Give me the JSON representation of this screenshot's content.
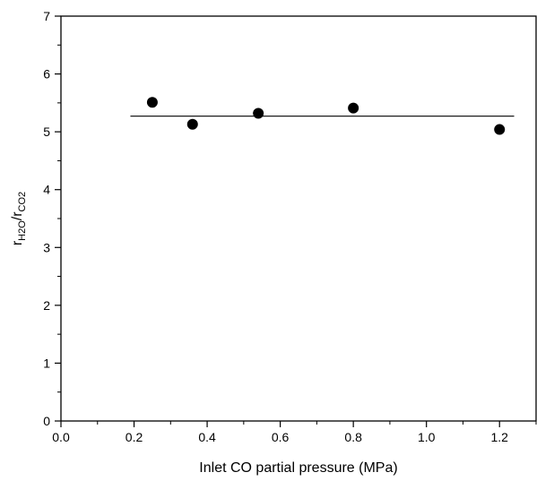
{
  "chart_data": {
    "type": "scatter",
    "title": "",
    "xlabel": "Inlet CO partial pressure (MPa)",
    "ylabel": {
      "r1": "r",
      "sub1": "H2O",
      "slash": "/r",
      "sub2": "CO2"
    },
    "xlim": [
      0.0,
      1.3
    ],
    "ylim": [
      0,
      7
    ],
    "x_ticks": [
      {
        "value": 0.0,
        "label": "0.0"
      },
      {
        "value": 0.2,
        "label": "0.2"
      },
      {
        "value": 0.4,
        "label": "0.4"
      },
      {
        "value": 0.6,
        "label": "0.6"
      },
      {
        "value": 0.8,
        "label": "0.8"
      },
      {
        "value": 1.0,
        "label": "1.0"
      },
      {
        "value": 1.2,
        "label": "1.2"
      }
    ],
    "y_ticks": [
      {
        "value": 0,
        "label": "0"
      },
      {
        "value": 1,
        "label": "1"
      },
      {
        "value": 2,
        "label": "2"
      },
      {
        "value": 3,
        "label": "3"
      },
      {
        "value": 4,
        "label": "4"
      },
      {
        "value": 5,
        "label": "5"
      },
      {
        "value": 6,
        "label": "6"
      },
      {
        "value": 7,
        "label": "7"
      }
    ],
    "series": [
      {
        "points": [
          {
            "x": 0.25,
            "y": 5.51
          },
          {
            "x": 0.36,
            "y": 5.13
          },
          {
            "x": 0.54,
            "y": 5.32
          },
          {
            "x": 0.8,
            "y": 5.41
          },
          {
            "x": 1.2,
            "y": 5.04
          }
        ]
      }
    ],
    "reference_line": {
      "x_start": 0.19,
      "x_end": 1.24,
      "y": 5.27
    },
    "grid": false,
    "legend": "none"
  },
  "colors": {
    "marker": "#000000",
    "line": "#000000",
    "axes": "#000000"
  }
}
